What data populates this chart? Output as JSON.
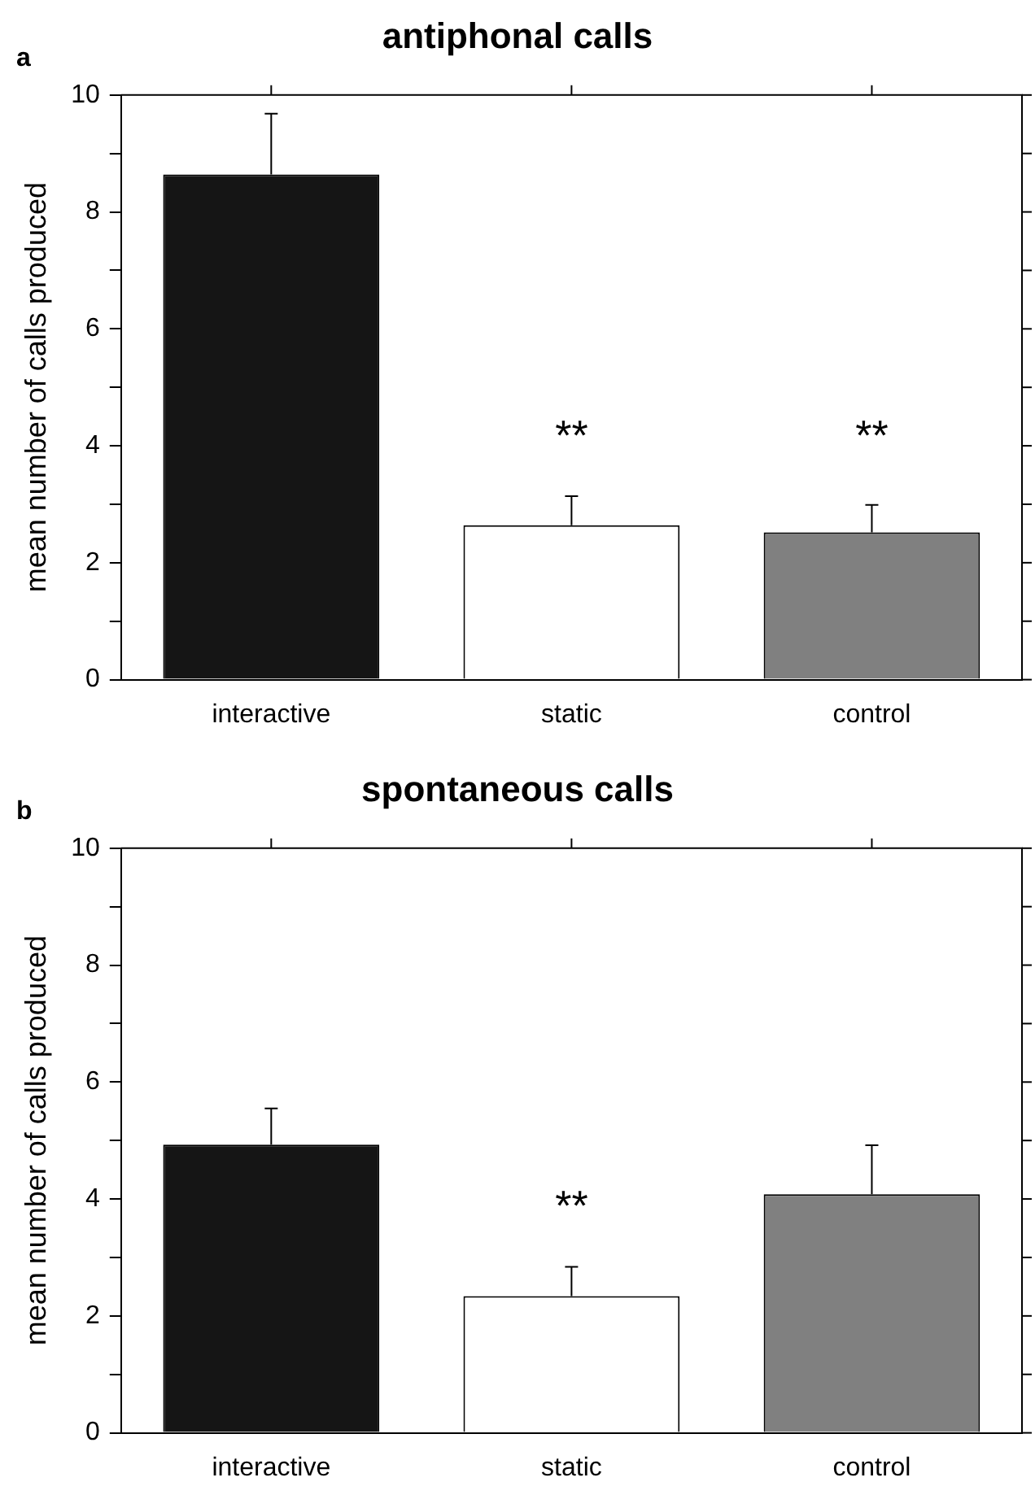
{
  "chart_data": [
    {
      "type": "bar",
      "title": "antiphonal calls",
      "ylabel": "mean number of calls produced",
      "categories": [
        "interactive",
        "static",
        "control"
      ],
      "values": [
        8.64,
        2.64,
        2.52
      ],
      "colors": [
        "#151515",
        "#ffffff",
        "#808080"
      ],
      "errors": [
        1.04,
        0.5,
        0.47
      ],
      "ylim": [
        0,
        10
      ],
      "yticks": [
        0,
        {
          "value": 1,
          "label": null
        },
        2,
        {
          "value": 3,
          "label": null
        },
        4,
        {
          "value": 5,
          "label": null
        },
        6,
        {
          "value": 7,
          "label": null
        },
        8,
        {
          "value": 9,
          "label": null
        },
        10
      ],
      "grid": false,
      "annotations": [
        "a",
        "**",
        "**"
      ]
    },
    {
      "type": "bar",
      "title": "spontaneous calls",
      "ylabel": "mean number of calls produced",
      "categories": [
        "interactive",
        "static",
        "control"
      ],
      "values": [
        4.93,
        2.34,
        4.08
      ],
      "colors": [
        "#151515",
        "#ffffff",
        "#808080"
      ],
      "errors": [
        0.62,
        0.5,
        0.84
      ],
      "ylim": [
        0,
        10
      ],
      "yticks": [
        0,
        {
          "value": 1,
          "label": null
        },
        2,
        {
          "value": 3,
          "label": null
        },
        4,
        {
          "value": 5,
          "label": null
        },
        6,
        {
          "value": 7,
          "label": null
        },
        8,
        {
          "value": 9,
          "label": null
        },
        10
      ],
      "grid": false,
      "annotations": [
        "b",
        "**"
      ]
    }
  ]
}
